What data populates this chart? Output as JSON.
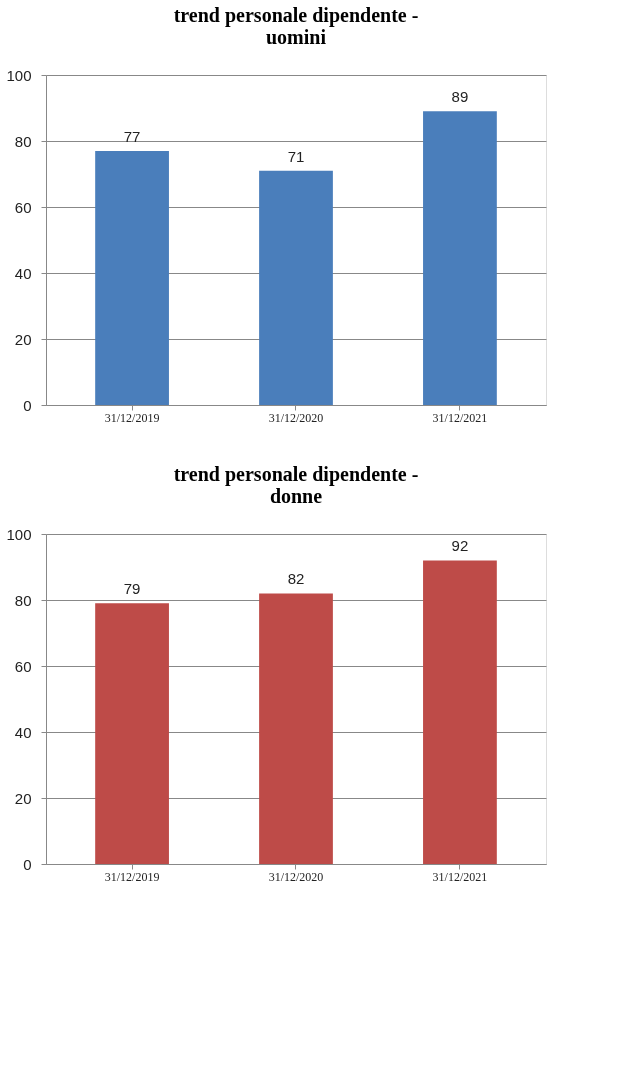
{
  "chart_data": [
    {
      "type": "bar",
      "title": "trend personale dipendente - uomini",
      "categories": [
        "31/12/2019",
        "31/12/2020",
        "31/12/2021"
      ],
      "series": [
        {
          "color": "#4a7ebb",
          "values": [
            77,
            71,
            89
          ]
        }
      ],
      "ylim": [
        0,
        100
      ],
      "yticks": [
        0,
        20,
        40,
        60,
        80,
        100
      ],
      "grid": "y",
      "data_labels": true
    },
    {
      "type": "bar",
      "title": "trend personale dipendente - donne",
      "categories": [
        "31/12/2019",
        "31/12/2020",
        "31/12/2021"
      ],
      "series": [
        {
          "color": "#be4b48",
          "values": [
            79,
            82,
            92
          ]
        }
      ],
      "ylim": [
        0,
        100
      ],
      "yticks": [
        0,
        20,
        40,
        60,
        80,
        100
      ],
      "grid": "y",
      "data_labels": true
    }
  ]
}
